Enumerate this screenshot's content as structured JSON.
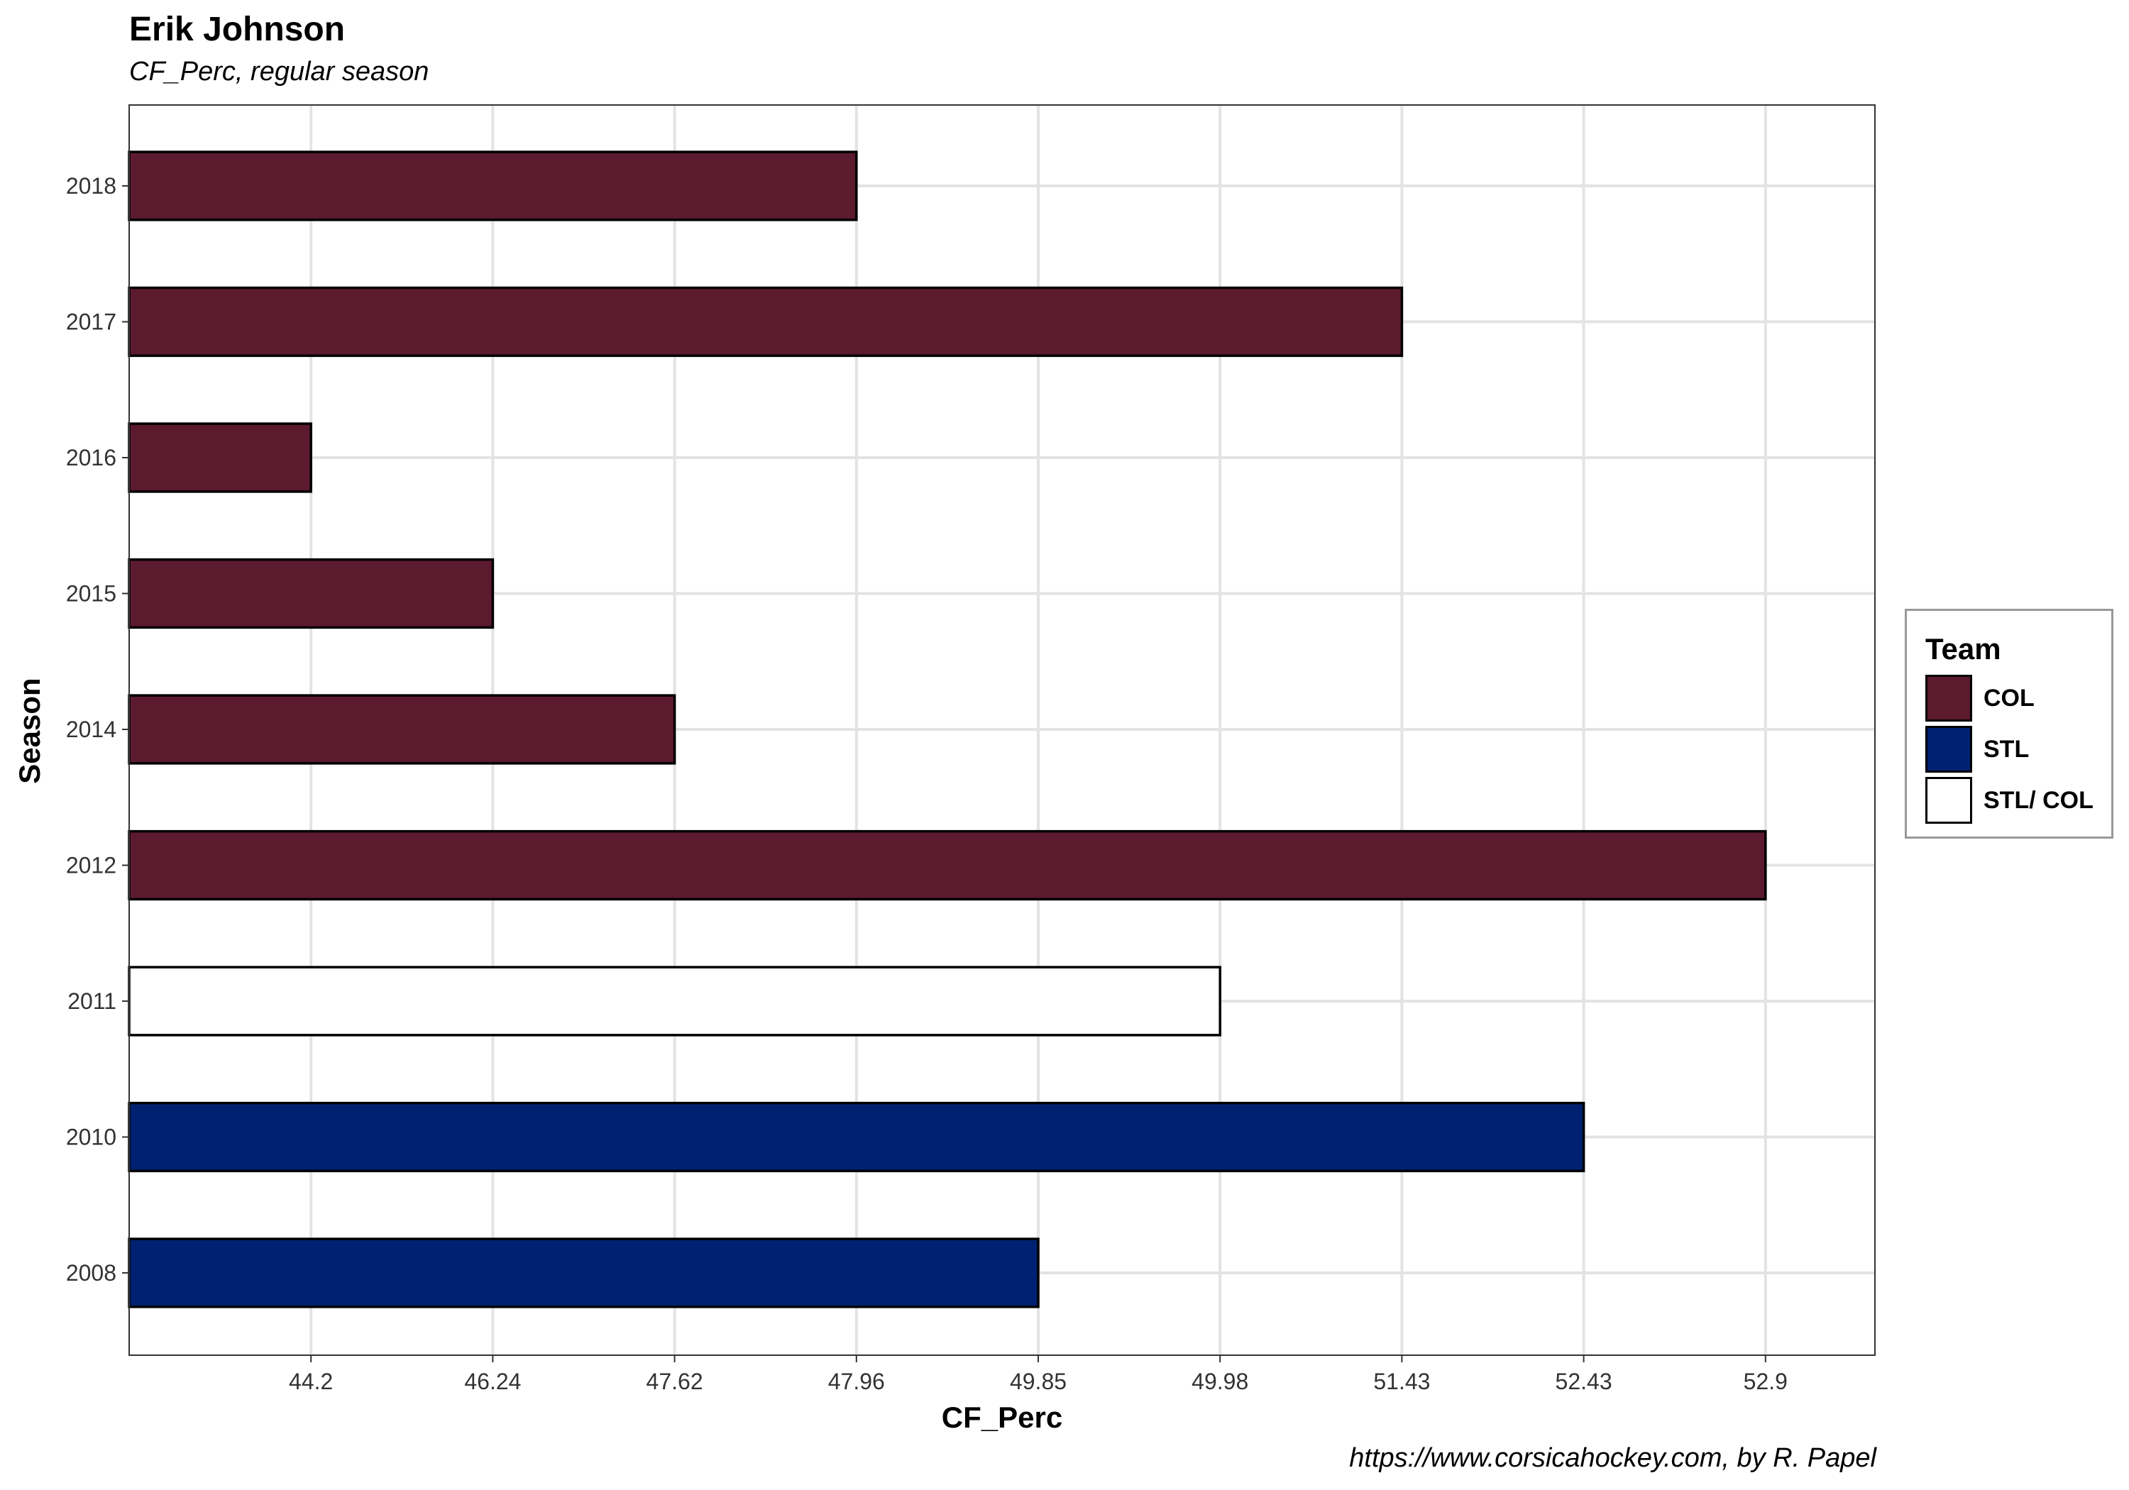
{
  "chart_data": {
    "type": "bar",
    "orientation": "horizontal",
    "title": "Erik Johnson",
    "subtitle": "CF_Perc, regular season",
    "caption": "https://www.corsicahockey.com, by R. Papel",
    "xlabel": "CF_Perc",
    "ylabel": "Season",
    "categories": [
      "2008",
      "2010",
      "2011",
      "2012",
      "2014",
      "2015",
      "2016",
      "2017",
      "2018"
    ],
    "values": [
      49.85,
      52.43,
      49.98,
      52.9,
      47.62,
      46.24,
      44.2,
      51.43,
      47.96
    ],
    "teams": [
      "STL",
      "STL",
      "STL/ COL",
      "COL",
      "COL",
      "COL",
      "COL",
      "COL",
      "COL"
    ],
    "x_tick_labels": [
      "44.2",
      "46.24",
      "47.62",
      "47.96",
      "49.85",
      "49.98",
      "51.43",
      "52.43",
      "52.9"
    ],
    "x_scale": "rank",
    "grid": true,
    "legend": {
      "title": "Team",
      "position": "right",
      "items": [
        {
          "label": "COL",
          "color": "#5c1a2f"
        },
        {
          "label": "STL",
          "color": "#002171"
        },
        {
          "label": "STL/ COL",
          "color": "#ffffff"
        }
      ]
    }
  }
}
